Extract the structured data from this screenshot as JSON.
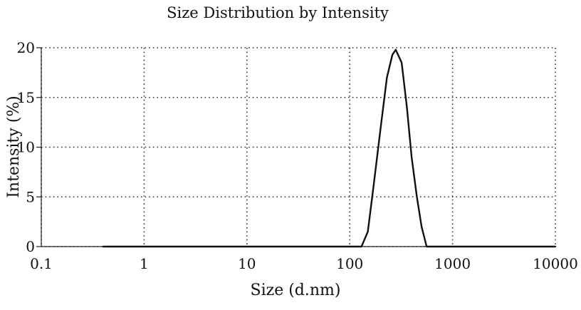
{
  "chart_data": {
    "type": "line",
    "title": "Size Distribution by Intensity",
    "xlabel": "Size (d.nm)",
    "ylabel": "Intensity (%)",
    "x_scale": "log",
    "xlim": [
      0.1,
      10000
    ],
    "ylim": [
      0,
      20
    ],
    "x_ticks": [
      0.1,
      1,
      10,
      100,
      1000,
      10000
    ],
    "x_tick_labels": [
      "0.1",
      "1",
      "10",
      "100",
      "1000",
      "10000"
    ],
    "y_ticks": [
      0,
      5,
      10,
      15,
      20
    ],
    "y_tick_labels": [
      "0",
      "5",
      "10",
      "15",
      "20"
    ],
    "grid": true,
    "grid_style": "dotted",
    "line_color": "#111111",
    "series": [
      {
        "x": [
          0.4,
          1,
          10,
          100,
          130,
          150,
          170,
          200,
          230,
          260,
          280,
          320,
          360,
          400,
          450,
          500,
          560,
          700,
          1000,
          3000,
          10000
        ],
        "y": [
          0,
          0,
          0,
          0,
          0,
          1.5,
          6,
          12,
          17,
          19.3,
          19.8,
          18.5,
          14,
          9,
          5,
          2,
          0,
          0,
          0,
          0,
          0
        ]
      }
    ]
  }
}
